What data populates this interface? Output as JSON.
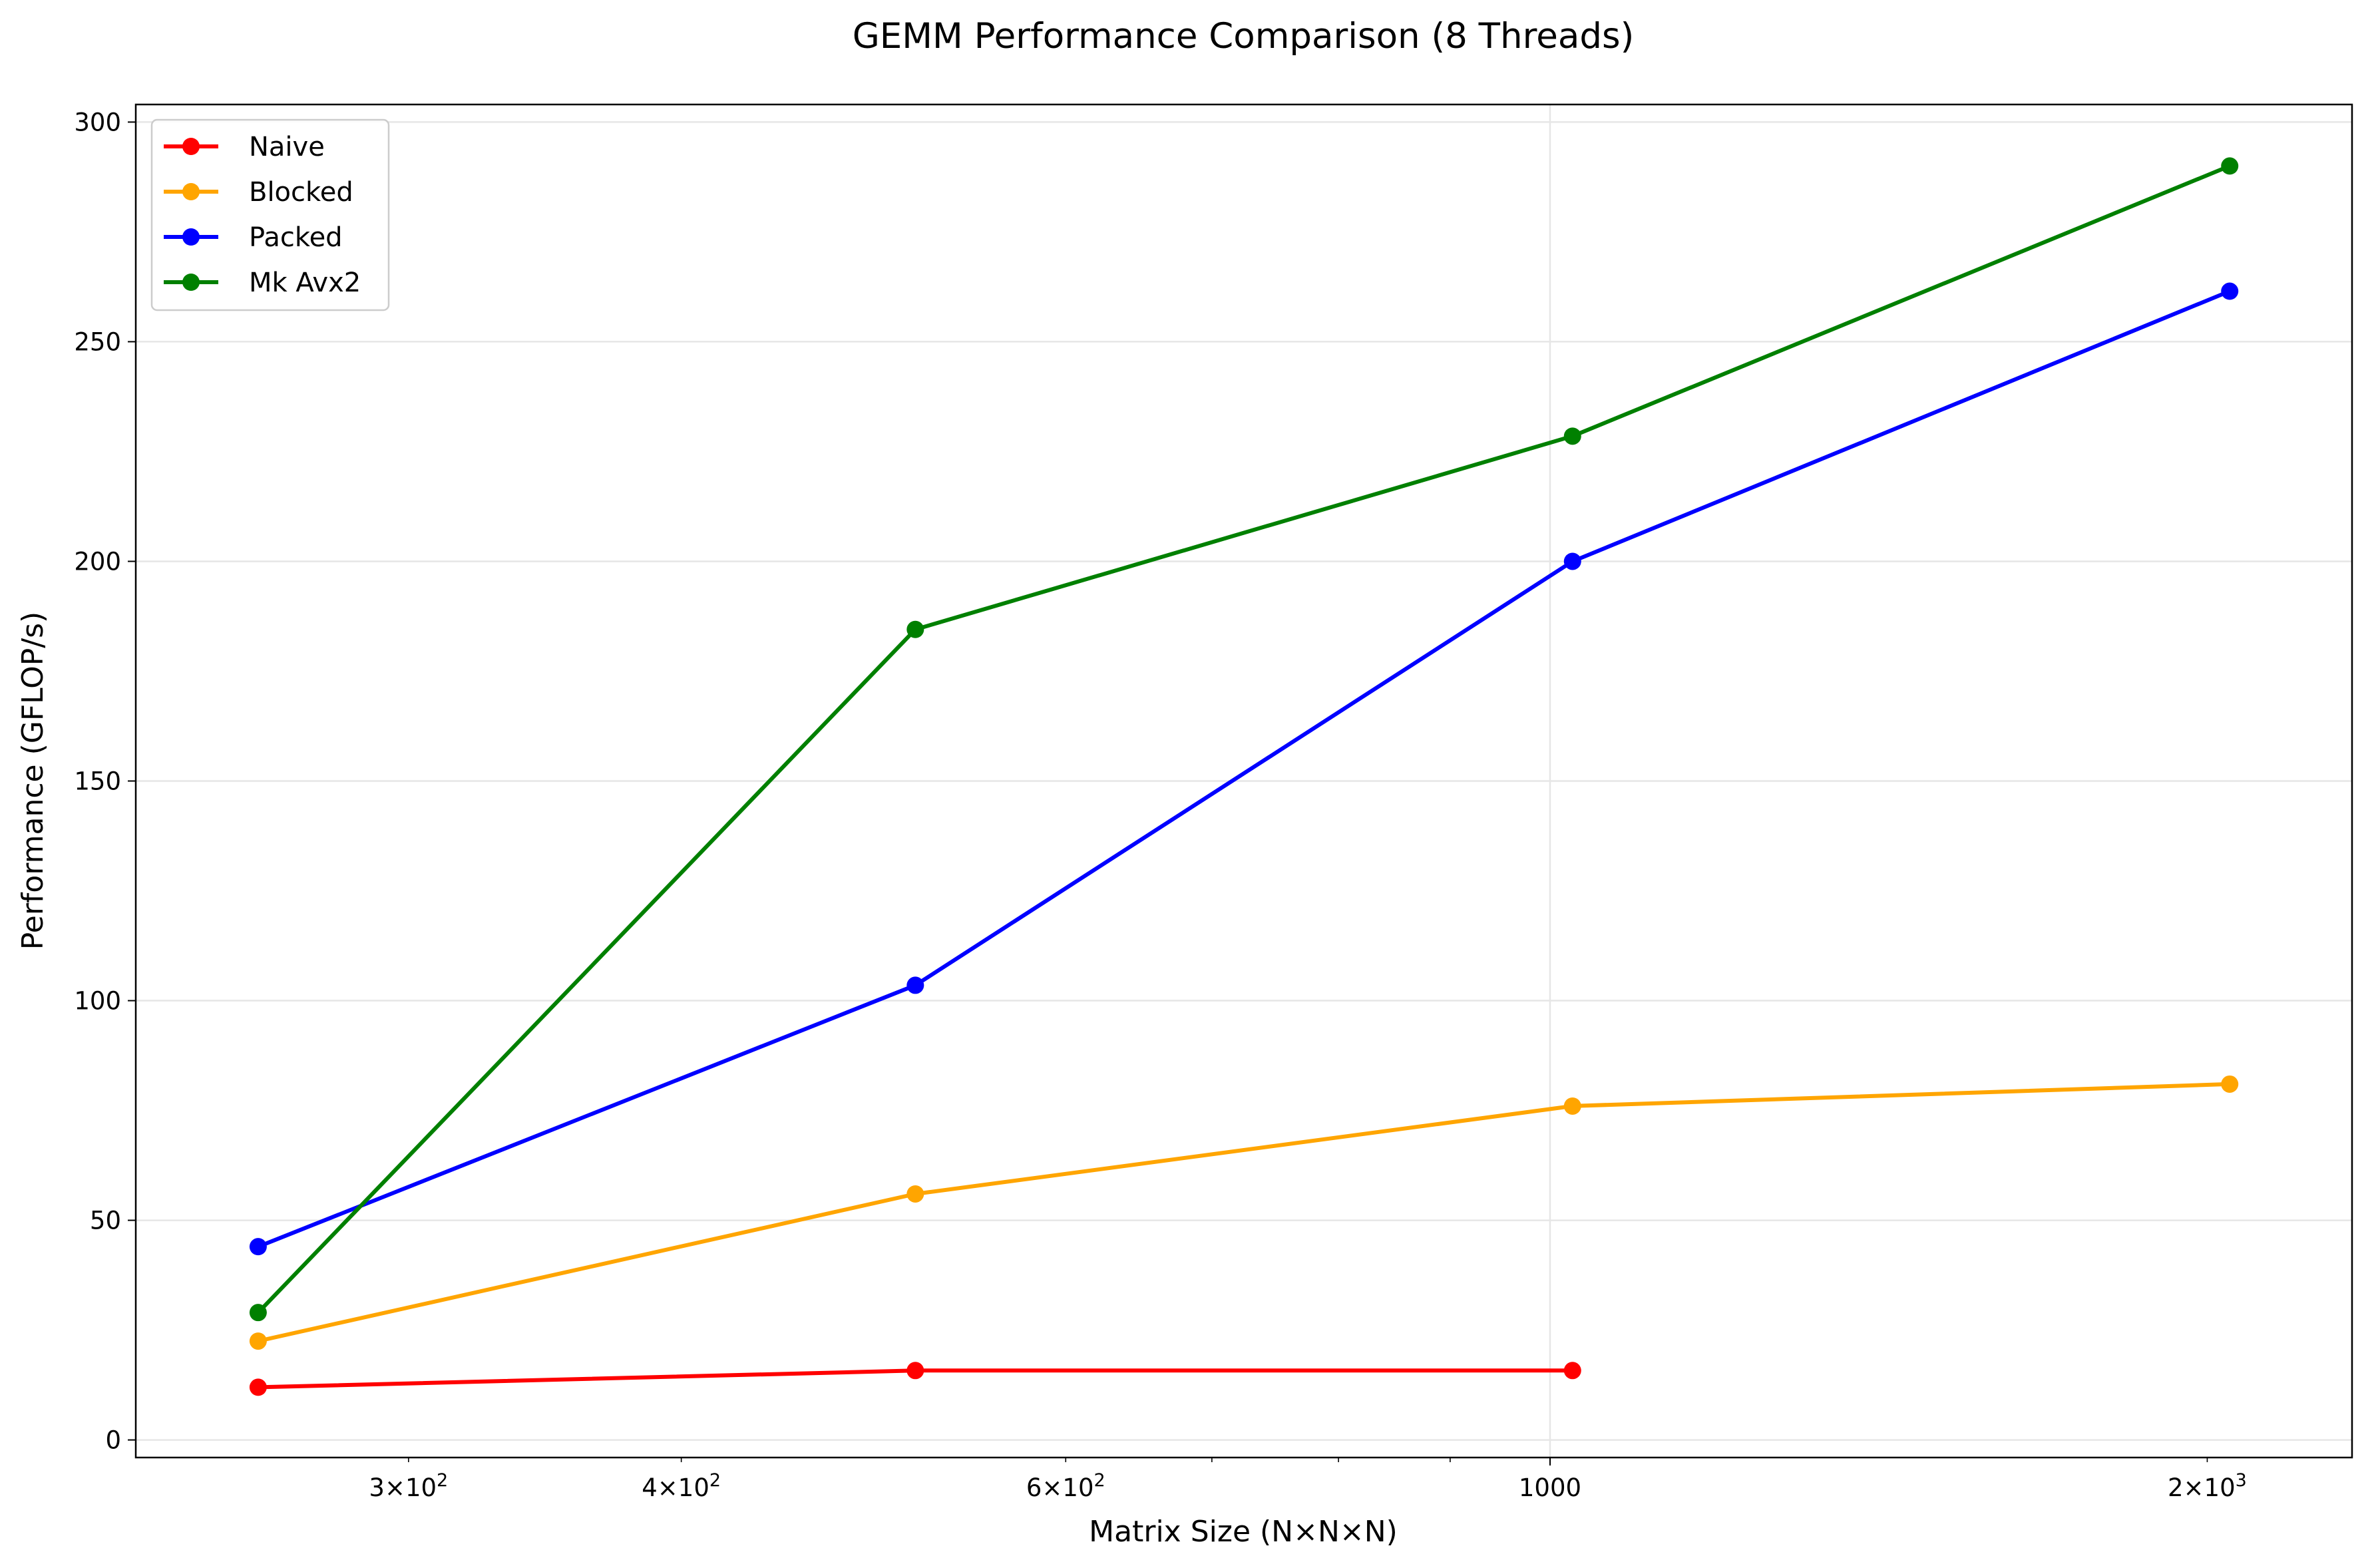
{
  "chart_data": {
    "type": "line",
    "title": "GEMM Performance Comparison (8 Threads)",
    "xlabel": "Matrix Size (N×N×N)",
    "ylabel": "Performance (GFLOP/s)",
    "x_scale": "log",
    "x": [
      256,
      512,
      1024,
      2048
    ],
    "xlim": [
      225,
      2330
    ],
    "ylim": [
      -4,
      304
    ],
    "x_ticks": [
      {
        "value": 300,
        "base": "3",
        "mult": "×",
        "exp_base": "10",
        "exp": "2"
      },
      {
        "value": 400,
        "base": "4",
        "mult": "×",
        "exp_base": "10",
        "exp": "2"
      },
      {
        "value": 600,
        "base": "6",
        "mult": "×",
        "exp_base": "10",
        "exp": "2"
      },
      {
        "value": 1000,
        "label": "1000"
      },
      {
        "value": 2000,
        "base": "2",
        "mult": "×",
        "exp_base": "10",
        "exp": "3"
      }
    ],
    "x_minor_ticks": [
      700,
      800,
      900
    ],
    "x_grid": [
      1000
    ],
    "y_ticks": [
      0,
      50,
      100,
      150,
      200,
      250,
      300
    ],
    "grid": true,
    "legend": "top-left",
    "series": [
      {
        "name": "Naive",
        "color": "#ff0000",
        "values": [
          12.0,
          15.8,
          15.8,
          null
        ]
      },
      {
        "name": "Blocked",
        "color": "#ffa500",
        "values": [
          22.5,
          56.0,
          76.0,
          81.0
        ]
      },
      {
        "name": "Packed",
        "color": "#0000ff",
        "values": [
          44.0,
          103.5,
          200.0,
          261.5
        ]
      },
      {
        "name": "Mk Avx2",
        "color": "#008000",
        "values": [
          29.0,
          184.5,
          228.5,
          290.0
        ]
      }
    ]
  }
}
